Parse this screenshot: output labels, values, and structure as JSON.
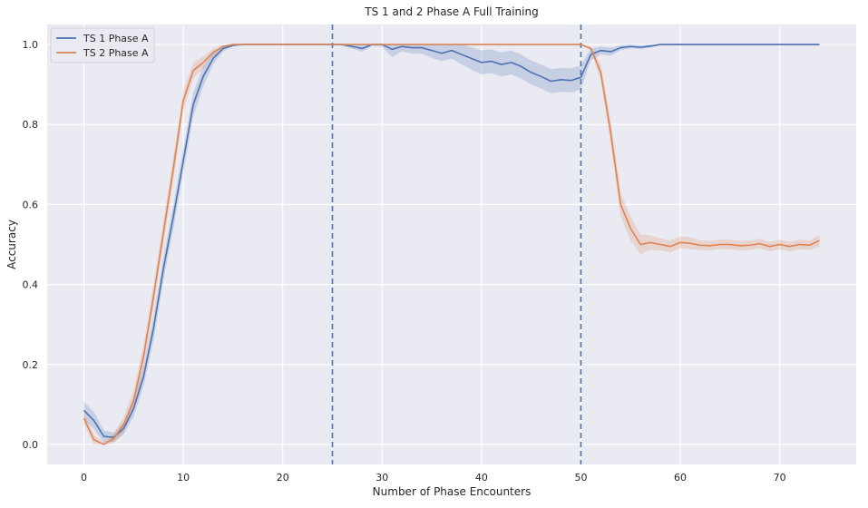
{
  "chart_data": {
    "type": "line",
    "title": "TS 1 and 2 Phase A Full Training",
    "xlabel": "Number of Phase Encounters",
    "ylabel": "Accuracy",
    "xlim": [
      -3.7,
      77.7
    ],
    "ylim": [
      -0.05,
      1.05
    ],
    "xticks": [
      0,
      10,
      20,
      30,
      40,
      50,
      60,
      70
    ],
    "yticks": [
      0.0,
      0.2,
      0.4,
      0.6,
      0.8,
      1.0
    ],
    "xtick_labels": [
      "0",
      "10",
      "20",
      "30",
      "40",
      "50",
      "60",
      "70"
    ],
    "ytick_labels": [
      "0.0",
      "0.2",
      "0.4",
      "0.6",
      "0.8",
      "1.0"
    ],
    "grid": true,
    "background": "#eaeaf2",
    "legend_position": "top-left",
    "vlines": [
      {
        "x": 25,
        "style": "dashed",
        "color": "#4c72b0"
      },
      {
        "x": 50,
        "style": "dashed",
        "color": "#4c72b0"
      }
    ],
    "series": [
      {
        "name": "TS 1 Phase A",
        "color": "#4c72b0",
        "x": [
          0,
          1,
          2,
          3,
          4,
          5,
          6,
          7,
          8,
          9,
          10,
          11,
          12,
          13,
          14,
          15,
          16,
          17,
          18,
          19,
          20,
          21,
          22,
          23,
          24,
          25,
          26,
          27,
          28,
          29,
          30,
          31,
          32,
          33,
          34,
          35,
          36,
          37,
          38,
          39,
          40,
          41,
          42,
          43,
          44,
          45,
          46,
          47,
          48,
          49,
          50,
          51,
          52,
          53,
          54,
          55,
          56,
          57,
          58,
          59,
          60,
          61,
          62,
          63,
          64,
          65,
          66,
          67,
          68,
          69,
          70,
          71,
          72,
          73,
          74
        ],
        "y": [
          0.085,
          0.06,
          0.02,
          0.018,
          0.04,
          0.09,
          0.17,
          0.29,
          0.44,
          0.57,
          0.71,
          0.85,
          0.92,
          0.965,
          0.99,
          0.998,
          1.0,
          1.0,
          1.0,
          1.0,
          1.0,
          1.0,
          1.0,
          1.0,
          1.0,
          1.0,
          1.0,
          0.995,
          0.99,
          1.0,
          1.0,
          0.988,
          0.995,
          0.992,
          0.992,
          0.985,
          0.978,
          0.985,
          0.975,
          0.965,
          0.955,
          0.958,
          0.95,
          0.955,
          0.945,
          0.93,
          0.92,
          0.908,
          0.912,
          0.91,
          0.918,
          0.975,
          0.985,
          0.982,
          0.992,
          0.995,
          0.993,
          0.996,
          1.0,
          1.0,
          1.0,
          1.0,
          1.0,
          1.0,
          1.0,
          1.0,
          1.0,
          1.0,
          1.0,
          1.0,
          1.0,
          1.0,
          1.0,
          1.0,
          1.0
        ],
        "ci_half_width": [
          0.022,
          0.022,
          0.015,
          0.012,
          0.015,
          0.02,
          0.025,
          0.03,
          0.03,
          0.03,
          0.03,
          0.03,
          0.025,
          0.015,
          0.008,
          0.003,
          0,
          0,
          0,
          0,
          0,
          0,
          0,
          0,
          0,
          0,
          0.004,
          0.006,
          0.008,
          0.004,
          0.006,
          0.02,
          0.012,
          0.015,
          0.015,
          0.018,
          0.02,
          0.02,
          0.025,
          0.028,
          0.03,
          0.03,
          0.03,
          0.03,
          0.03,
          0.03,
          0.03,
          0.03,
          0.03,
          0.03,
          0.03,
          0.015,
          0.01,
          0.01,
          0.006,
          0.005,
          0.005,
          0.004,
          0,
          0,
          0,
          0,
          0,
          0,
          0,
          0,
          0,
          0,
          0,
          0,
          0,
          0,
          0,
          0,
          0
        ]
      },
      {
        "name": "TS 2 Phase A",
        "color": "#dd8452",
        "x": [
          0,
          1,
          2,
          3,
          4,
          5,
          6,
          7,
          8,
          9,
          10,
          11,
          12,
          13,
          14,
          15,
          16,
          17,
          18,
          19,
          20,
          21,
          22,
          23,
          24,
          25,
          26,
          27,
          28,
          29,
          30,
          31,
          32,
          33,
          34,
          35,
          36,
          37,
          38,
          39,
          40,
          41,
          42,
          43,
          44,
          45,
          46,
          47,
          48,
          49,
          50,
          51,
          52,
          53,
          54,
          55,
          56,
          57,
          58,
          59,
          60,
          61,
          62,
          63,
          64,
          65,
          66,
          67,
          68,
          69,
          70,
          71,
          72,
          73,
          74
        ],
        "y": [
          0.065,
          0.012,
          0.0,
          0.015,
          0.05,
          0.11,
          0.22,
          0.37,
          0.53,
          0.69,
          0.86,
          0.935,
          0.955,
          0.98,
          0.995,
          1.0,
          1.0,
          1.0,
          1.0,
          1.0,
          1.0,
          1.0,
          1.0,
          1.0,
          1.0,
          1.0,
          1.0,
          1.0,
          1.0,
          1.0,
          1.0,
          1.0,
          1.0,
          1.0,
          1.0,
          1.0,
          1.0,
          1.0,
          1.0,
          1.0,
          1.0,
          1.0,
          1.0,
          1.0,
          1.0,
          1.0,
          1.0,
          1.0,
          1.0,
          1.0,
          1.0,
          0.99,
          0.93,
          0.78,
          0.6,
          0.54,
          0.5,
          0.505,
          0.5,
          0.495,
          0.505,
          0.503,
          0.498,
          0.497,
          0.5,
          0.5,
          0.497,
          0.498,
          0.502,
          0.495,
          0.5,
          0.495,
          0.5,
          0.498,
          0.51
        ],
        "ci_half_width": [
          0.015,
          0.012,
          0.005,
          0.012,
          0.02,
          0.025,
          0.03,
          0.03,
          0.03,
          0.03,
          0.025,
          0.02,
          0.015,
          0.01,
          0.004,
          0,
          0,
          0,
          0,
          0,
          0,
          0,
          0,
          0,
          0,
          0,
          0,
          0,
          0,
          0,
          0,
          0,
          0,
          0,
          0,
          0,
          0,
          0,
          0,
          0,
          0,
          0,
          0,
          0,
          0,
          0,
          0,
          0,
          0,
          0,
          0,
          0.005,
          0.02,
          0.03,
          0.03,
          0.03,
          0.025,
          0.018,
          0.015,
          0.015,
          0.015,
          0.015,
          0.012,
          0.012,
          0.012,
          0.012,
          0.012,
          0.012,
          0.012,
          0.012,
          0.012,
          0.012,
          0.012,
          0.012,
          0.015
        ]
      }
    ]
  }
}
